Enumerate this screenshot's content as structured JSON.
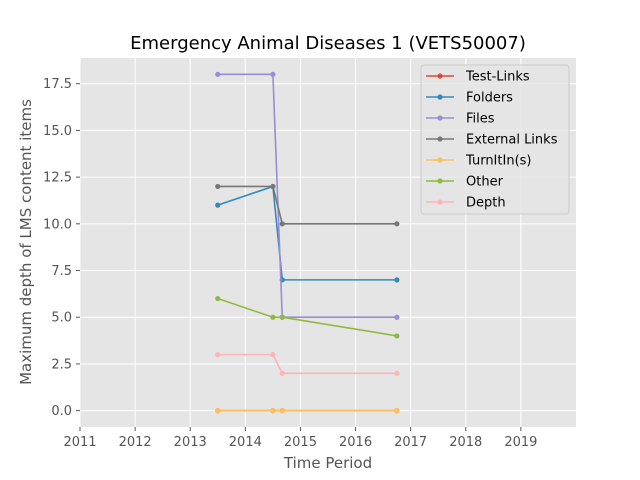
{
  "chart_data": {
    "type": "line",
    "title": "Emergency Animal Diseases 1 (VETS50007)",
    "xlabel": "Time Period",
    "ylabel": "Maximum depth of LMS content items",
    "xlim": [
      2011,
      2020
    ],
    "ylim": [
      -0.875,
      18.875
    ],
    "x_ticks": [
      "2011",
      "2012",
      "2013",
      "2014",
      "2015",
      "2016",
      "2017",
      "2018",
      "2019"
    ],
    "y_ticks": [
      "0.0",
      "2.5",
      "5.0",
      "7.5",
      "10.0",
      "12.5",
      "15.0",
      "17.5"
    ],
    "grid": true,
    "legend_position": "top-right",
    "x": [
      2013.5,
      2014.5,
      2014.67,
      2016.75
    ],
    "series": [
      {
        "name": "Test-Links",
        "color": "#E24A33",
        "values": [
          0,
          0,
          0,
          0
        ]
      },
      {
        "name": "Folders",
        "color": "#348ABD",
        "values": [
          11,
          12,
          7,
          7
        ]
      },
      {
        "name": "Files",
        "color": "#988ED5",
        "values": [
          18,
          18,
          5,
          5
        ]
      },
      {
        "name": "External Links",
        "color": "#777777",
        "values": [
          12,
          12,
          10,
          10
        ]
      },
      {
        "name": "TurnItIn(s)",
        "color": "#FBC15E",
        "values": [
          0,
          0,
          0,
          0
        ]
      },
      {
        "name": "Other",
        "color": "#8EBA42",
        "values": [
          6,
          5,
          5,
          4
        ]
      },
      {
        "name": "Depth",
        "color": "#FFB5B8",
        "values": [
          3,
          3,
          2,
          2
        ]
      }
    ]
  }
}
